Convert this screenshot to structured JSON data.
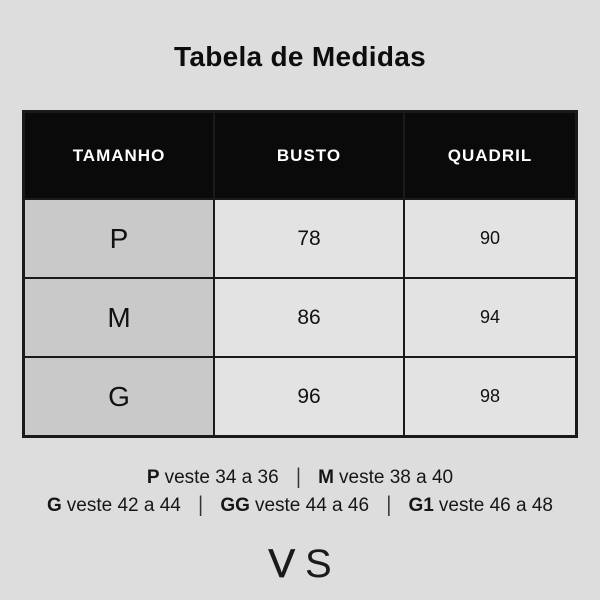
{
  "theme": {
    "bg": "#dddddd",
    "header_bg": "#0a0a0a",
    "header_text": "#ffffff",
    "size_col_bg": "#c9c9c9",
    "cell_bg": "#e3e3e3",
    "border": "#1a1a1a",
    "text": "#111111"
  },
  "chart_data": {
    "type": "table",
    "title": "Tabela de Medidas",
    "columns": [
      "TAMANHO",
      "BUSTO",
      "QUADRIL"
    ],
    "rows": [
      [
        "P",
        78,
        90
      ],
      [
        "M",
        86,
        94
      ],
      [
        "G",
        96,
        98
      ]
    ],
    "annotations": [
      "P veste 34 a 36",
      "M veste 38 a 40",
      "G veste 42 a 44",
      "GG veste 44 a 46",
      "G1 veste 46 a 48"
    ]
  },
  "size_guide": {
    "separator": "|",
    "line1": [
      {
        "label": "P",
        "text": "veste 34 a 36"
      },
      {
        "label": "M",
        "text": "veste 38 a 40"
      }
    ],
    "line2": [
      {
        "label": "G",
        "text": "veste 42 a 44"
      },
      {
        "label": "GG",
        "text": "veste 44 a 46"
      },
      {
        "label": "G1",
        "text": "veste 46 a 48"
      }
    ]
  },
  "logo": {
    "v": "V",
    "s": "S"
  }
}
